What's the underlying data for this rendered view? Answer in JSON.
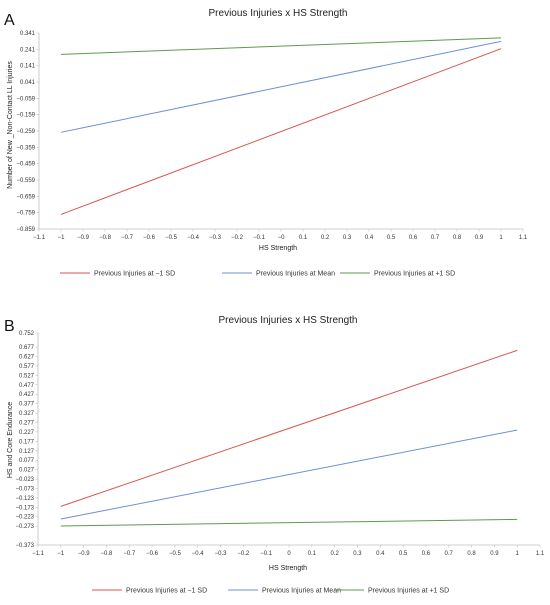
{
  "chart_data": [
    {
      "type": "line",
      "panel_label": "A",
      "title": "Previous Injuries x HS Strength",
      "xlabel": "HS Strength",
      "ylabel": "Number of New _Non-Contact LL Injuries",
      "xlim": [
        -1.1,
        1.1
      ],
      "ylim": [
        -0.859,
        0.341
      ],
      "x_ticks": [
        -1.1,
        -1,
        -0.9,
        -0.8,
        -0.7,
        -0.6,
        -0.5,
        -0.4,
        -0.3,
        -0.2,
        -0.1,
        0,
        0.1,
        0.2,
        0.3,
        0.4,
        0.5,
        0.6,
        0.7,
        0.8,
        0.9,
        1,
        1.1
      ],
      "x_tick_labels": [
        "−1.1",
        "−1",
        "−0.9",
        "−0.8",
        "−0.7",
        "−0.6",
        "−0.5",
        "−0.4",
        "−0.3",
        "−0.2",
        "−0.1",
        "−0",
        "0.1",
        "0.2",
        "0.3",
        "0.4",
        "0.5",
        "0.6",
        "0.7",
        "0.8",
        "0.9",
        "1",
        "1.1"
      ],
      "y_ticks": [
        0.341,
        0.241,
        0.141,
        0.041,
        -0.059,
        -0.159,
        -0.259,
        -0.359,
        -0.459,
        -0.559,
        -0.659,
        -0.759,
        -0.859
      ],
      "y_tick_labels": [
        "0.341",
        "0.241",
        "0.141",
        "0.041",
        "−0.059",
        "−0.159",
        "−0.259",
        "−0.359",
        "−0.459",
        "−0.559",
        "−0.659",
        "−0.759",
        "−0.859"
      ],
      "x": [
        -1,
        1
      ],
      "series": [
        {
          "name": "Previous Injuries at −1 SD",
          "color": "#d9534f",
          "values": [
            -0.77,
            0.245
          ]
        },
        {
          "name": "Previous Injuries at Mean",
          "color": "#6e8fd6",
          "values": [
            -0.267,
            0.29
          ]
        },
        {
          "name": "Previous Injuries at +1 SD",
          "color": "#5c9a4e",
          "values": [
            0.21,
            0.311
          ]
        }
      ],
      "grid": false,
      "legend_position": "bottom"
    },
    {
      "type": "line",
      "panel_label": "B",
      "title": "Previous Injuries x HS Strength",
      "xlabel": "HS Strength",
      "ylabel": "HS and Core Endurance",
      "xlim": [
        -1.1,
        1.1
      ],
      "ylim": [
        -0.373,
        0.752
      ],
      "x_ticks": [
        -1.1,
        -1,
        -0.9,
        -0.8,
        -0.7,
        -0.6,
        -0.5,
        -0.4,
        -0.3,
        -0.2,
        -0.1,
        0,
        0.1,
        0.2,
        0.3,
        0.4,
        0.5,
        0.6,
        0.7,
        0.8,
        0.9,
        1,
        1.1
      ],
      "x_tick_labels": [
        "−1.1",
        "−1",
        "−0.9",
        "−0.8",
        "−0.7",
        "−0.6",
        "−0.5",
        "−0.4",
        "−0.3",
        "−0.2",
        "−0.1",
        "0",
        "0.1",
        "0.2",
        "0.3",
        "0.4",
        "0.5",
        "0.6",
        "0.7",
        "0.8",
        "0.9",
        "1",
        "1.1"
      ],
      "y_ticks": [
        0.752,
        0.677,
        0.627,
        0.577,
        0.527,
        0.477,
        0.427,
        0.377,
        0.327,
        0.277,
        0.227,
        0.177,
        0.127,
        0.077,
        0.027,
        -0.023,
        -0.073,
        -0.123,
        -0.173,
        -0.223,
        -0.273,
        -0.373
      ],
      "y_tick_labels": [
        "0.752",
        "0.677",
        "0.627",
        "0.577",
        "0.527",
        "0.477",
        "0.427",
        "0.377",
        "0.327",
        "0.277",
        "0.227",
        "0.177",
        "0.127",
        "0.077",
        "0.027",
        "−0.023",
        "−0.073",
        "−0.123",
        "−0.173",
        "−0.223",
        "−0.273",
        "−0.373"
      ],
      "x": [
        -1,
        1
      ],
      "series": [
        {
          "name": "Previous Injuries at −1 SD",
          "color": "#d9534f",
          "values": [
            -0.168,
            0.66
          ]
        },
        {
          "name": "Previous Injuries at Mean",
          "color": "#6e8fd6",
          "values": [
            -0.235,
            0.237
          ]
        },
        {
          "name": "Previous Injuries at +1 SD",
          "color": "#5c9a4e",
          "values": [
            -0.272,
            -0.237
          ]
        }
      ],
      "grid": false,
      "legend_position": "bottom"
    }
  ]
}
